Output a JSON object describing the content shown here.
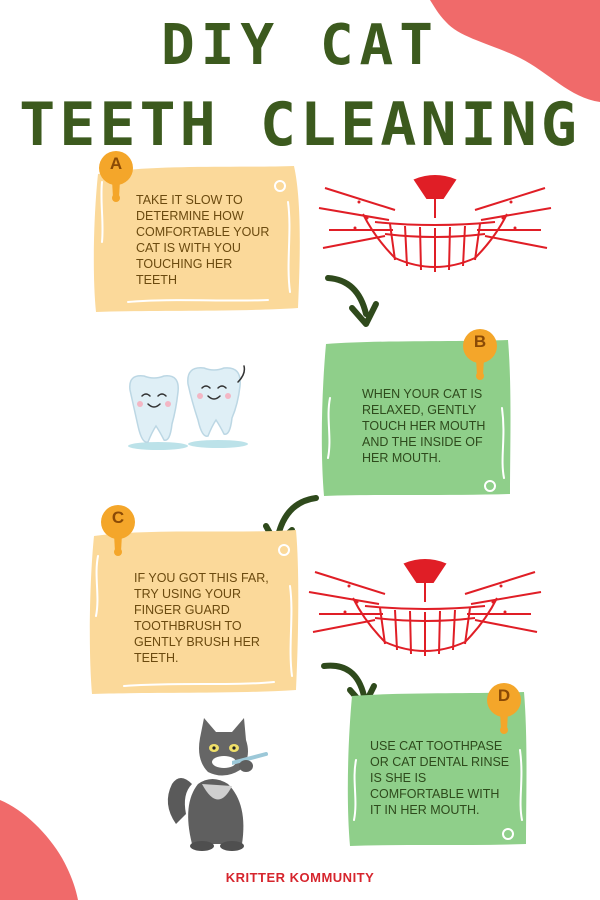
{
  "title": {
    "line1": "DIY CAT",
    "line2": "TEETH CLEANING"
  },
  "steps": [
    {
      "letter": "A",
      "color": "yellow",
      "text": "TAKE IT SLOW TO DETERMINE HOW COMFORTABLE YOUR CAT IS WITH YOU TOUCHING HER TEETH"
    },
    {
      "letter": "B",
      "color": "green",
      "text": "WHEN YOUR CAT IS RELAXED, GENTLY TOUCH HER MOUTH AND THE INSIDE OF HER MOUTH."
    },
    {
      "letter": "C",
      "color": "yellow",
      "text": "IF YOU GOT THIS FAR, TRY USING YOUR FINGER GUARD TOOTHBRUSH TO GENTLY BRUSH HER TEETH."
    },
    {
      "letter": "D",
      "color": "green",
      "text": "USE CAT TOOTHPASE OR CAT DENTAL RINSE IS SHE IS COMFORTABLE WITH IT IN HER MOUTH."
    }
  ],
  "footer": "KRITTER KOMMUNITY",
  "colors": {
    "title": "#3c5a1e",
    "card_yellow": "#fbd99a",
    "card_green": "#8fcf8a",
    "badge": "#f4a62a",
    "mouth": "#e01e26",
    "arrow": "#2f4a1c",
    "accent_blob": "#f06a6a",
    "footer": "#d6252d"
  },
  "icons": [
    "cat-smile-mouth-icon",
    "curved-arrow-icon",
    "happy-teeth-icon",
    "cat-brushing-teeth-icon",
    "drip-badge-icon"
  ]
}
